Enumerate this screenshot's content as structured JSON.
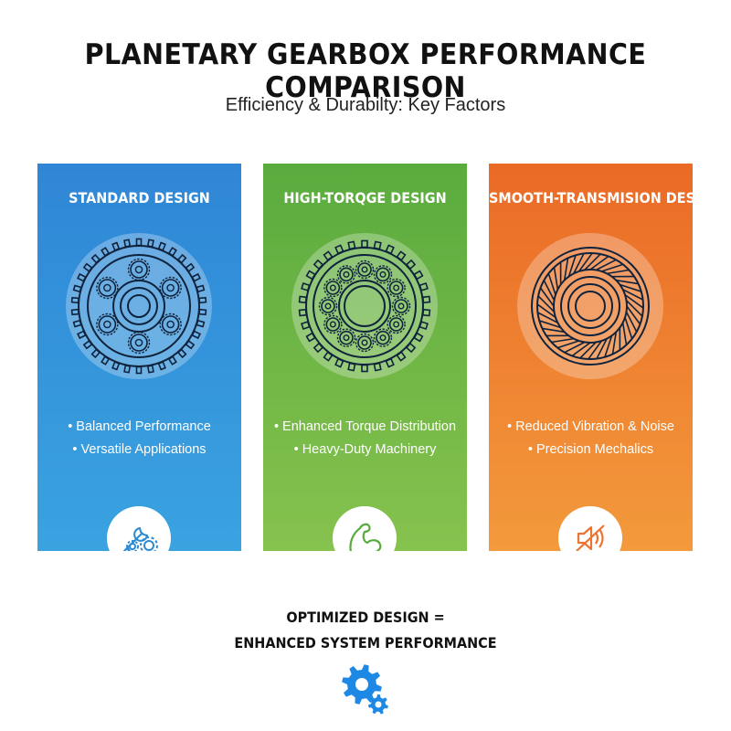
{
  "header": {
    "title": "PLANETARY GEARBOX PERFORMANCE COMPARISON",
    "subtitle": "Efficiency & Durabilty: Key Factors"
  },
  "panels": [
    {
      "title": "STANDARD DESIGN",
      "color": "#3097d9",
      "bullets": [
        "• Balanced Performance",
        "• Versatile Applications"
      ],
      "icon": "wrench-gears-icon"
    },
    {
      "title": "HIGH-TORQGE DESIGN",
      "color": "#6cb447",
      "bullets": [
        "• Enhanced Torque Distribution",
        "• Heavy-Duty Machinery"
      ],
      "icon": "flexed-arm-icon"
    },
    {
      "title": "SMOOTH-TRANSMISION DESIGN",
      "color": "#ef7f30",
      "bullets": [
        "• Reduced Vibration & Noise",
        "• Precision Mechalics"
      ],
      "icon": "muted-speaker-icon"
    }
  ],
  "footer": {
    "line1": "OPTIMIZED DESIGN =",
    "line2": "ENHANCED SYSTEM PERFORMANCE",
    "icon": "gears-icon",
    "icon_color": "#1e88e5"
  }
}
